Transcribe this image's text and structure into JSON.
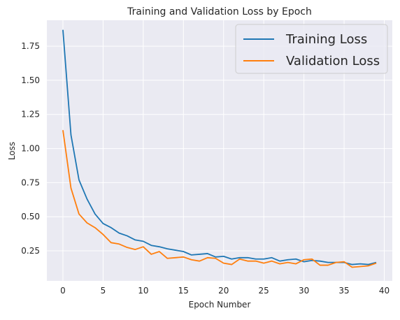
{
  "chart_data": {
    "type": "line",
    "title": "Training and Validation Loss by Epoch",
    "xlabel": "Epoch Number",
    "ylabel": "Loss",
    "xlim": [
      -2,
      41
    ],
    "ylim": [
      0.03,
      1.94
    ],
    "xticks": [
      0,
      5,
      10,
      15,
      20,
      25,
      30,
      35,
      40
    ],
    "xtick_labels": [
      "0",
      "5",
      "10",
      "15",
      "20",
      "25",
      "30",
      "35",
      "40"
    ],
    "yticks": [
      0.25,
      0.5,
      0.75,
      1.0,
      1.25,
      1.5,
      1.75
    ],
    "ytick_labels": [
      "0.25",
      "0.50",
      "0.75",
      "1.00",
      "1.25",
      "1.50",
      "1.75"
    ],
    "grid": true,
    "legend_position": "upper-right",
    "x": [
      0,
      1,
      2,
      3,
      4,
      5,
      6,
      7,
      8,
      9,
      10,
      11,
      12,
      13,
      14,
      15,
      16,
      17,
      18,
      19,
      20,
      21,
      22,
      23,
      24,
      25,
      26,
      27,
      28,
      29,
      30,
      31,
      32,
      33,
      34,
      35,
      36,
      37,
      38,
      39
    ],
    "series": [
      {
        "name": "Training Loss",
        "color": "#1f77b4",
        "values": [
          1.87,
          1.1,
          0.77,
          0.63,
          0.52,
          0.45,
          0.42,
          0.38,
          0.36,
          0.33,
          0.32,
          0.29,
          0.28,
          0.265,
          0.255,
          0.245,
          0.22,
          0.225,
          0.23,
          0.205,
          0.21,
          0.19,
          0.2,
          0.2,
          0.19,
          0.19,
          0.2,
          0.175,
          0.185,
          0.19,
          0.17,
          0.18,
          0.175,
          0.165,
          0.165,
          0.165,
          0.15,
          0.155,
          0.15,
          0.165
        ]
      },
      {
        "name": "Validation Loss",
        "color": "#ff7f0e",
        "values": [
          1.135,
          0.71,
          0.52,
          0.455,
          0.42,
          0.37,
          0.31,
          0.3,
          0.275,
          0.26,
          0.28,
          0.225,
          0.245,
          0.195,
          0.2,
          0.205,
          0.185,
          0.175,
          0.2,
          0.195,
          0.16,
          0.15,
          0.19,
          0.175,
          0.175,
          0.16,
          0.175,
          0.155,
          0.165,
          0.155,
          0.185,
          0.19,
          0.145,
          0.145,
          0.165,
          0.17,
          0.13,
          0.135,
          0.14,
          0.16
        ]
      }
    ]
  }
}
